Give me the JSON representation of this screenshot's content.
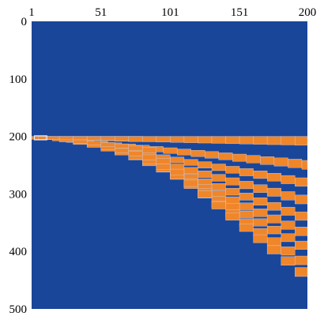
{
  "chart_data": {
    "type": "heatmap",
    "title": "",
    "xlabel": "",
    "ylabel": "",
    "xlim": [
      1,
      200
    ],
    "ylim": [
      0,
      500
    ],
    "x_ticks": [
      "1",
      "51",
      "101",
      "151",
      "200"
    ],
    "y_ticks": [
      "0",
      "100",
      "200",
      "300",
      "400",
      "500"
    ],
    "x_tick_values": [
      1,
      51,
      101,
      151,
      200
    ],
    "y_tick_values": [
      0,
      100,
      200,
      300,
      400,
      500
    ],
    "x_axis_position": "top",
    "y_axis_direction": "downward",
    "grid": false,
    "legend": "none",
    "colors": {
      "background": "#1a4699",
      "band": "#f0862a",
      "band_edge": "#c8d2e8"
    },
    "pattern": {
      "description_of_values": "top y of a stepped band per column group",
      "step_width_columns": 10,
      "start_y": 200,
      "bands": [
        {
          "start_x": 1,
          "y_per_step": 0,
          "thickness": 5
        },
        {
          "start_x": 6,
          "y_per_step": 2.2,
          "thickness": 5
        },
        {
          "start_x": 11,
          "y_per_step": 4.0,
          "thickness": 5
        },
        {
          "start_x": 21,
          "y_per_step": 6.0,
          "thickness": 6
        },
        {
          "start_x": 31,
          "y_per_step": 8.2,
          "thickness": 6
        },
        {
          "start_x": 41,
          "y_per_step": 10.5,
          "thickness": 7
        },
        {
          "start_x": 51,
          "y_per_step": 13.0,
          "thickness": 7
        },
        {
          "start_x": 61,
          "y_per_step": 16.0,
          "thickness": 8
        },
        {
          "start_x": 71,
          "y_per_step": 19.0,
          "thickness": 9
        }
      ]
    }
  }
}
